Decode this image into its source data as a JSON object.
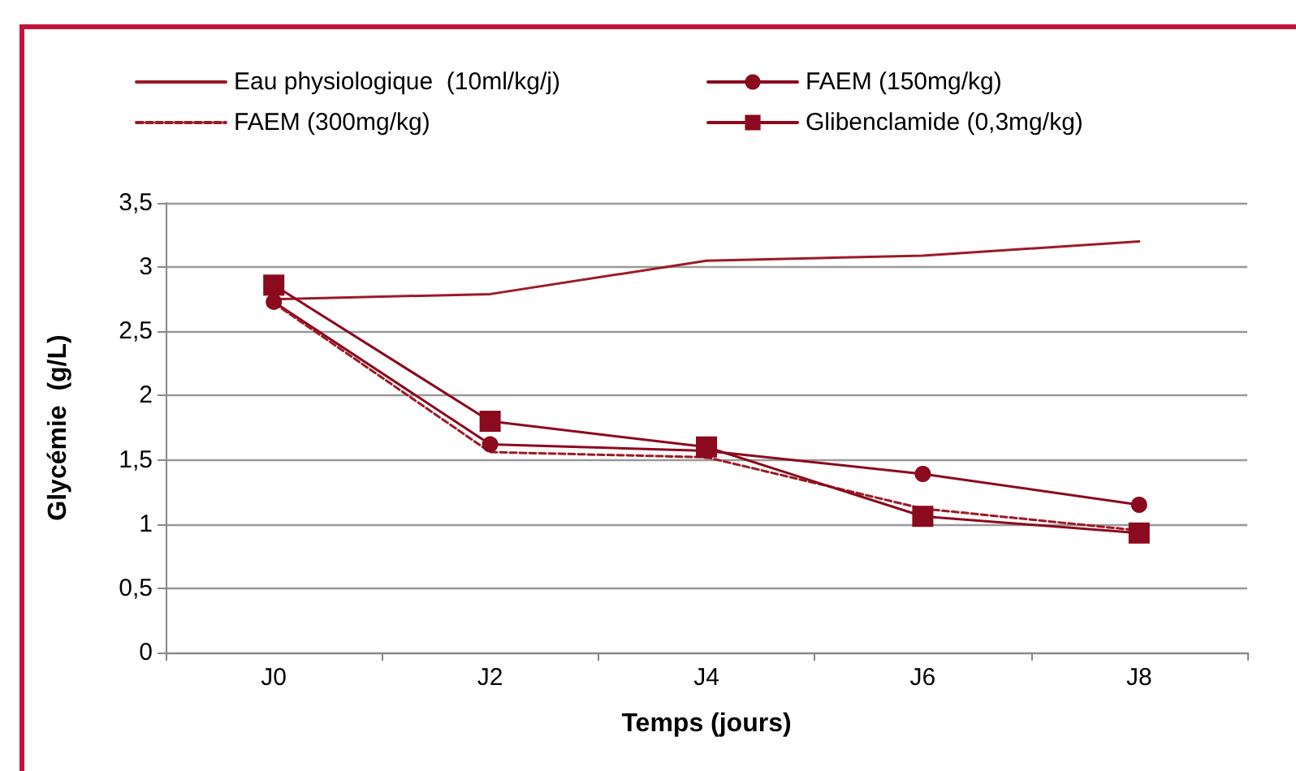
{
  "chart_data": {
    "type": "line",
    "xlabel": "Temps (jours)",
    "ylabel": "Glycémie  (g/L)",
    "categories": [
      "J0",
      "J2",
      "J4",
      "J6",
      "J8"
    ],
    "series": [
      {
        "name": "Eau physiologique  (10ml/kg/j)",
        "color": "#9b1b26",
        "values": [
          2.75,
          2.79,
          3.05,
          3.09,
          3.2
        ],
        "marker": "none",
        "line_style": "solid"
      },
      {
        "name": "FAEM (150mg/kg)",
        "color": "#8b0a1e",
        "values": [
          2.73,
          1.62,
          1.57,
          1.39,
          1.15
        ],
        "marker": "circle",
        "line_style": "solid"
      },
      {
        "name": "FAEM (300mg/kg)",
        "color": "#9b1b26",
        "values": [
          2.72,
          1.56,
          1.52,
          1.12,
          0.95
        ],
        "marker": "none",
        "line_style": "dashed"
      },
      {
        "name": "Glibenclamide (0,3mg/kg)",
        "color": "#8b0a1e",
        "values": [
          2.86,
          1.8,
          1.6,
          1.06,
          0.93
        ],
        "marker": "square",
        "line_style": "solid"
      }
    ],
    "ylim": [
      0,
      3.5
    ],
    "yticks": [
      0,
      {
        "value": 0.5,
        "label": "0,5"
      },
      1,
      {
        "value": 1.5,
        "label": "1,5"
      },
      2,
      {
        "value": 2.5,
        "label": "2,5"
      },
      3,
      {
        "value": 3.5,
        "label": "3,5"
      }
    ],
    "grid": "y",
    "legend": "top"
  }
}
